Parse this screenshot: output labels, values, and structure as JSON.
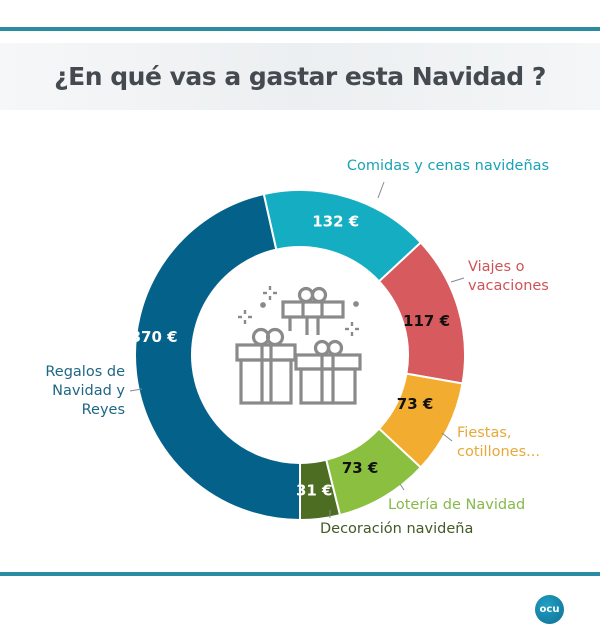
{
  "header": {
    "title": "¿En qué vas a gastar esta Navidad ?"
  },
  "logo": {
    "text": "ocu",
    "color": "#137fa5"
  },
  "center_icon": "gifts-icon",
  "chart_data": {
    "type": "pie",
    "variant": "donut",
    "title": "¿En qué vas a gastar esta Navidad ?",
    "unit": "€",
    "start": "bottom",
    "direction": "clockwise",
    "slices": [
      {
        "label": "Regalos de Navidad y Reyes",
        "label_lines": [
          "Regalos de",
          "Navidad y",
          "Reyes"
        ],
        "value": 370,
        "value_label": "370 €",
        "color": "#04628a",
        "text_color": "#ffffff",
        "label_color": "#1f6785"
      },
      {
        "label": "Comidas y cenas navideñas",
        "label_lines": [
          "Comidas y cenas navideñas"
        ],
        "value": 132,
        "value_label": "132 €",
        "color": "#14adc2",
        "text_color": "#ffffff",
        "label_color": "#1aa2b6"
      },
      {
        "label": "Viajes o vacaciones",
        "label_lines": [
          "Viajes o",
          "vacaciones"
        ],
        "value": 117,
        "value_label": "117 €",
        "color": "#d65a5e",
        "text_color": "#111111",
        "label_color": "#cf5357"
      },
      {
        "label": "Fiestas, cotillones...",
        "label_lines": [
          "Fiestas,",
          "cotillones..."
        ],
        "value": 73,
        "value_label": "73 €",
        "color": "#f2ad30",
        "text_color": "#111111",
        "label_color": "#e8a83a"
      },
      {
        "label": "Lotería de Navidad",
        "label_lines": [
          "Lotería de Navidad"
        ],
        "value": 73,
        "value_label": "73 €",
        "color": "#8bbf3f",
        "text_color": "#111111",
        "label_color": "#86b94a"
      },
      {
        "label": "Decoración navideña",
        "label_lines": [
          "Decoración navideña"
        ],
        "value": 31,
        "value_label": "31 €",
        "color": "#4d6e22",
        "text_color": "#ffffff",
        "label_color": "#435a26"
      }
    ]
  }
}
